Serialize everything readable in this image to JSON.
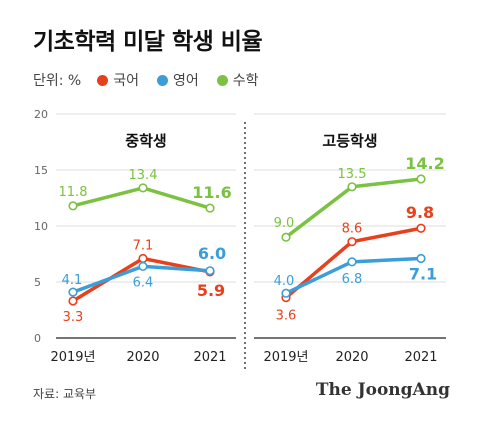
{
  "title": "기초학력 미달 학생 비율",
  "legend": {
    "unit": "단위: %",
    "items": [
      {
        "label": "국어",
        "color": "#e8401c"
      },
      {
        "label": "영어",
        "color": "#3b9ed8"
      },
      {
        "label": "수학",
        "color": "#7bc242"
      }
    ]
  },
  "chart_data": [
    {
      "type": "line",
      "title": "중학생",
      "categories": [
        "2019년",
        "2020",
        "2021"
      ],
      "ylim": [
        0,
        20
      ],
      "yticks": [
        "0",
        "5",
        "10",
        "15",
        "20"
      ],
      "grid": true,
      "series": [
        {
          "name": "국어",
          "color": "#e8401c",
          "values": [
            3.3,
            7.1,
            5.9
          ],
          "labels": [
            "3.3",
            "7.1",
            "5.9"
          ]
        },
        {
          "name": "영어",
          "color": "#3b9ed8",
          "values": [
            4.1,
            6.4,
            6.0
          ],
          "labels": [
            "4.1",
            "6.4",
            "6.0"
          ]
        },
        {
          "name": "수학",
          "color": "#7bc242",
          "values": [
            11.8,
            13.4,
            11.6
          ],
          "labels": [
            "11.8",
            "13.4",
            "11.6"
          ]
        }
      ]
    },
    {
      "type": "line",
      "title": "고등학생",
      "categories": [
        "2019년",
        "2020",
        "2021"
      ],
      "ylim": [
        0,
        20
      ],
      "grid": true,
      "series": [
        {
          "name": "국어",
          "color": "#e8401c",
          "values": [
            3.6,
            8.6,
            9.8
          ],
          "labels": [
            "3.6",
            "8.6",
            "9.8"
          ]
        },
        {
          "name": "영어",
          "color": "#3b9ed8",
          "values": [
            4.0,
            6.8,
            7.1
          ],
          "labels": [
            "4.0",
            "6.8",
            "7.1"
          ]
        },
        {
          "name": "수학",
          "color": "#7bc242",
          "values": [
            9.0,
            13.5,
            14.2
          ],
          "labels": [
            "9.0",
            "13.5",
            "14.2"
          ]
        }
      ]
    }
  ],
  "source": "자료: 교육부",
  "brand": "The JoongAng"
}
